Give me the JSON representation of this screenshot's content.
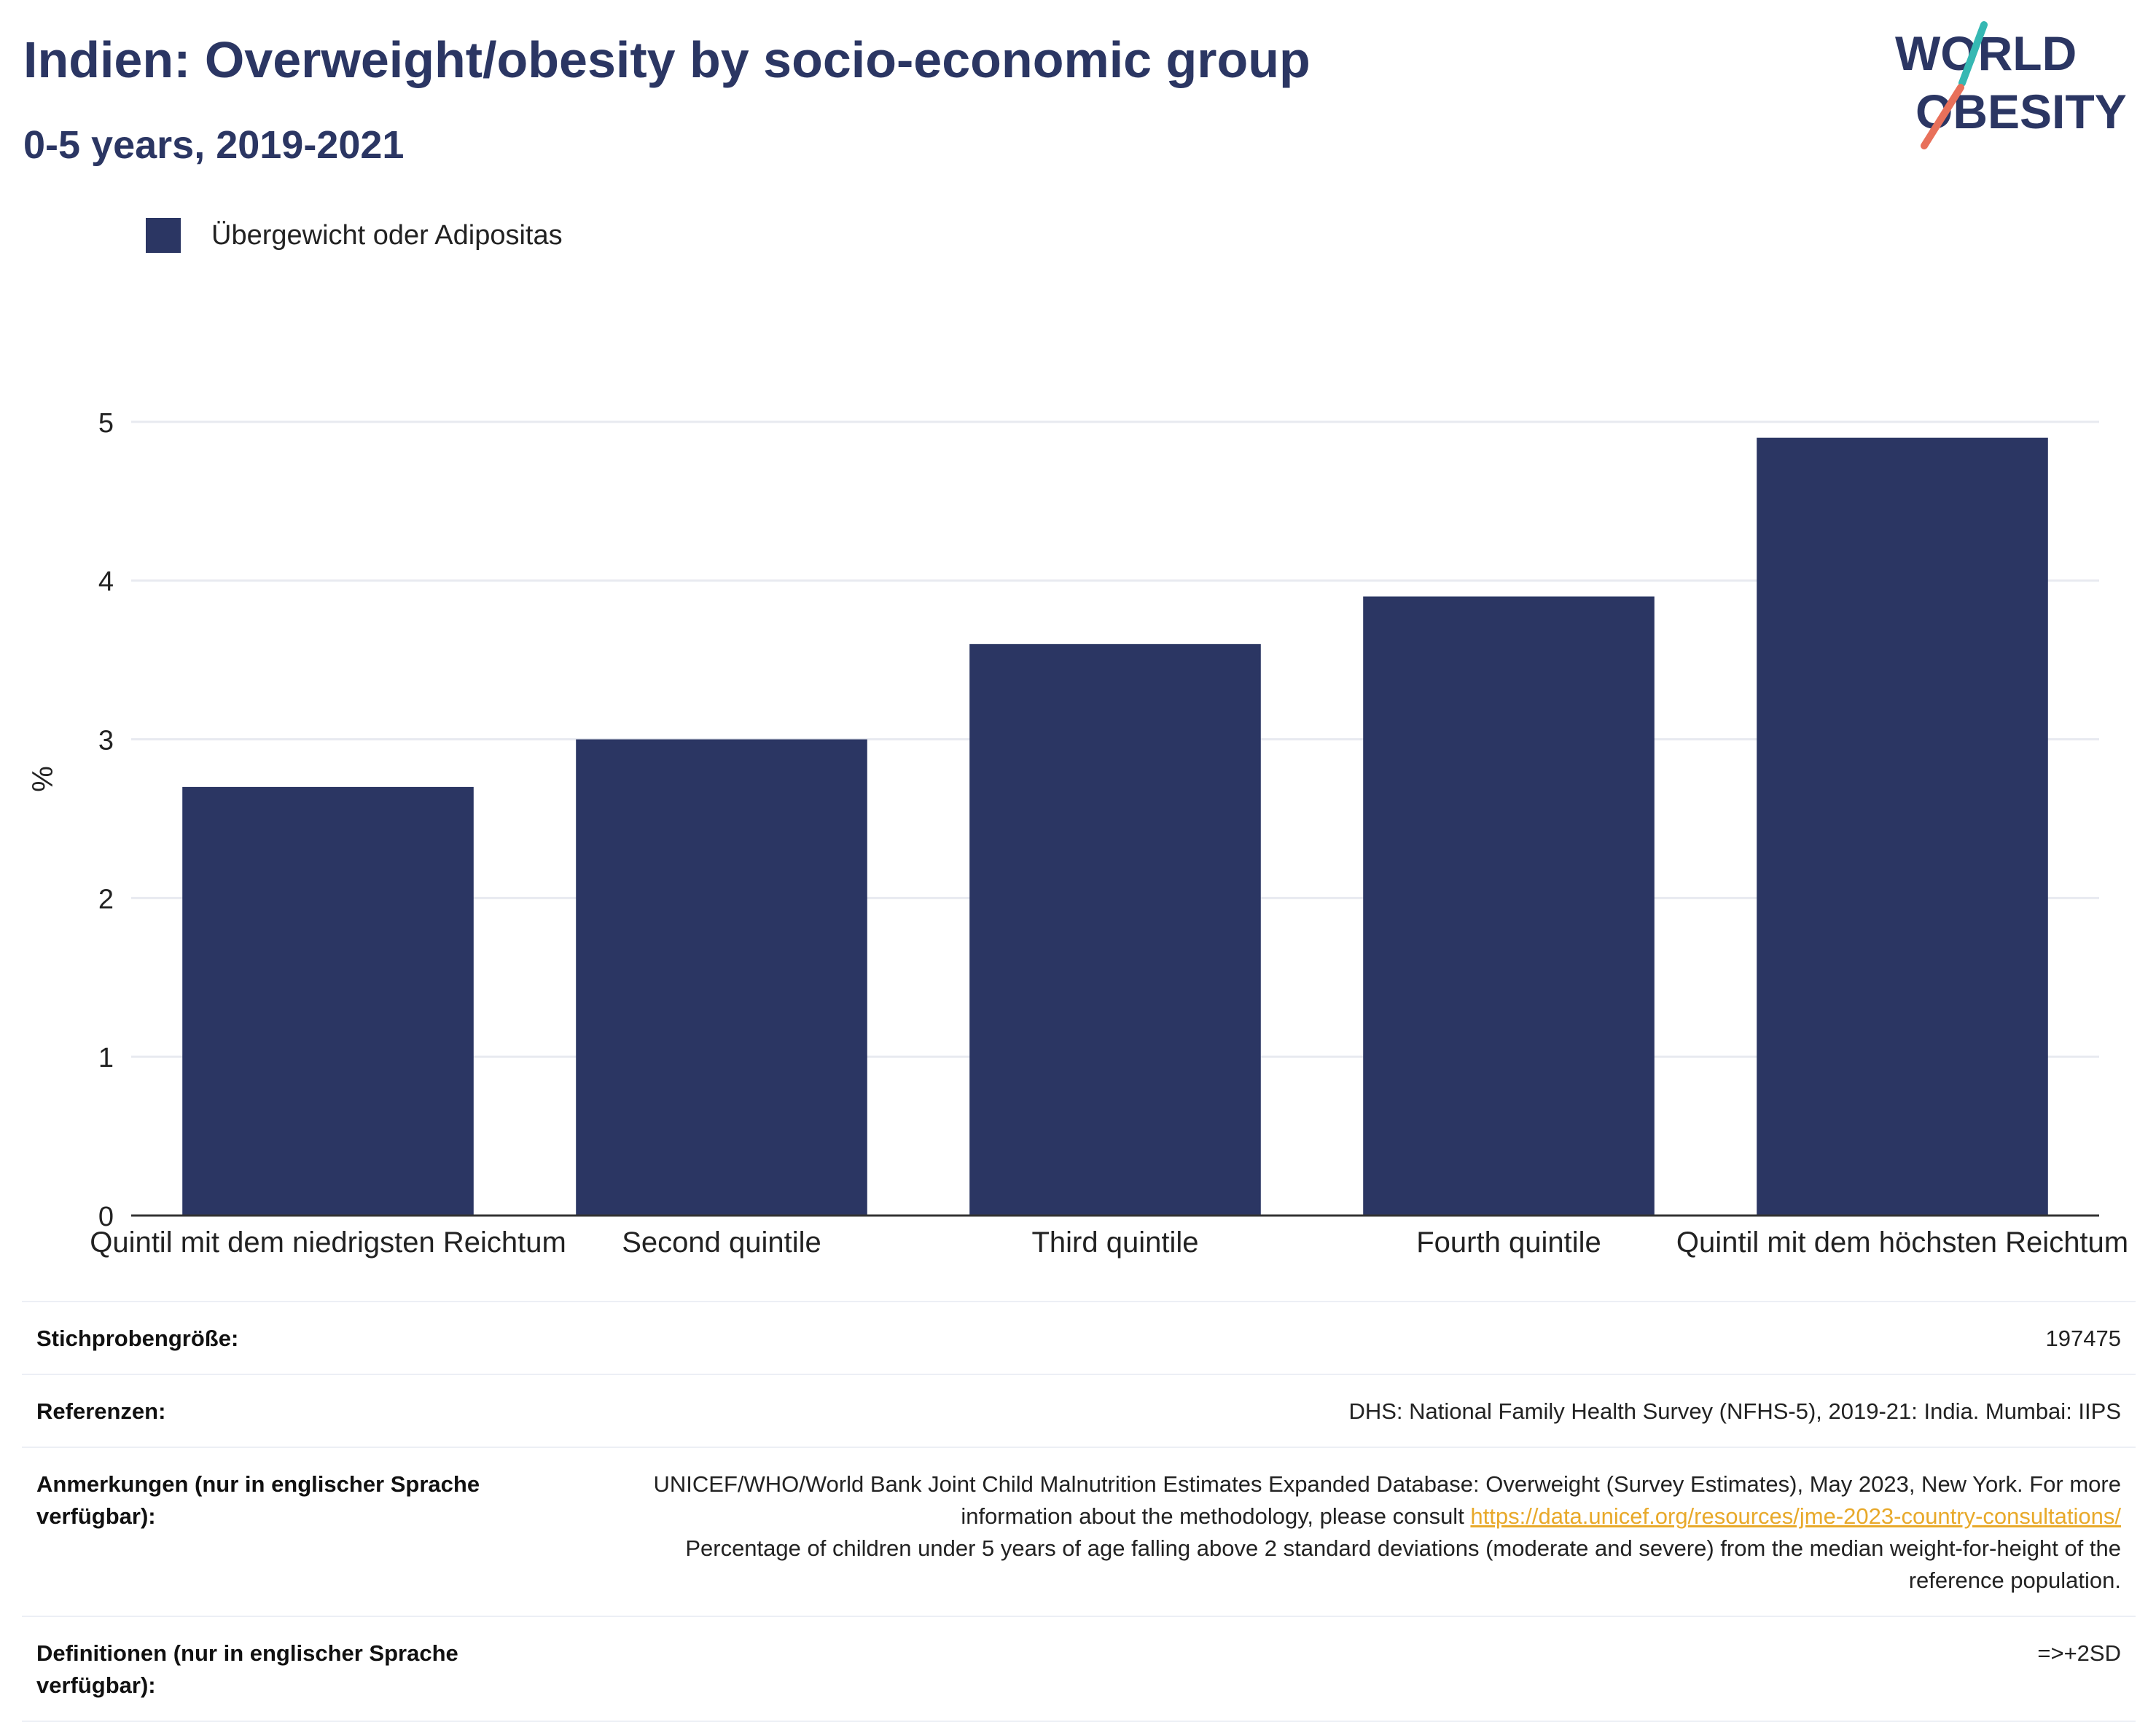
{
  "header": {
    "title": "Indien: Overweight/obesity by socio-economic group",
    "subtitle": "0-5 years, 2019-2021"
  },
  "logo": {
    "line1": "WORLD",
    "line2": "OBESITY",
    "colors": {
      "text": "#2b3663",
      "teal": "#35b8b3",
      "coral": "#e8705a"
    }
  },
  "colors": {
    "bar": "#2b3663",
    "grid": "#e8eaf0",
    "axis": "#333333",
    "link": "#e8a92a"
  },
  "chart_data": {
    "type": "bar",
    "categories": [
      "Quintil mit dem niedrigsten Reichtum",
      "Second quintile",
      "Third quintile",
      "Fourth quintile",
      "Quintil mit dem höchsten Reichtum"
    ],
    "series": [
      {
        "name": "Übergewicht oder Adipositas",
        "values": [
          2.7,
          3.0,
          3.6,
          3.9,
          4.9
        ]
      }
    ],
    "ylabel": "%",
    "ylim": [
      0,
      5.5
    ],
    "yticks": [
      0,
      1,
      2,
      3,
      4,
      5
    ],
    "grid": true,
    "legend": "top-left"
  },
  "meta": {
    "sample_size_label": "Stichprobengröße:",
    "sample_size_value": "197475",
    "references_label": "Referenzen:",
    "references_value": "DHS: National Family Health Survey (NFHS-5), 2019-21: India. Mumbai: IIPS",
    "notes_label": "Anmerkungen (nur in englischer Sprache verfügbar):",
    "notes_text_1": "UNICEF/WHO/World Bank Joint Child Malnutrition Estimates Expanded Database: Overweight (Survey Estimates), May 2023, New York. For more information about the methodology, please consult ",
    "notes_link": "https://data.unicef.org/resources/jme-2023-country-consultations/",
    "notes_text_2": "Percentage of children under 5 years of age falling above 2 standard deviations (moderate and severe) from the median weight-for-height of the reference population.",
    "definitions_label": "Definitionen (nur in englischer Sprache verfügbar):",
    "definitions_value": "=>+2SD"
  }
}
